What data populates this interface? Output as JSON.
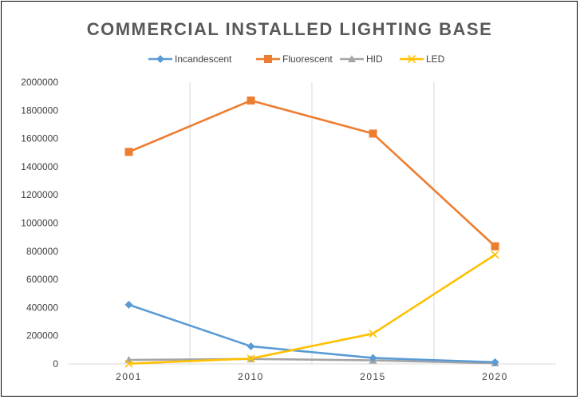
{
  "chart_data": {
    "type": "line",
    "title": "COMMERCIAL INSTALLED LIGHTING BASE",
    "xlabel": "",
    "ylabel": "",
    "categories": [
      "2001",
      "2010",
      "2015",
      "2020"
    ],
    "ylim": [
      0,
      2000000
    ],
    "yticks": [
      "0",
      "200000",
      "400000",
      "600000",
      "800000",
      "1000000",
      "1200000",
      "1400000",
      "1600000",
      "1800000",
      "2000000"
    ],
    "grid": "vertical",
    "legend_position": "top",
    "series": [
      {
        "name": "Incandescent",
        "color": "#5B9BD5",
        "marker": "diamond",
        "values": [
          420000,
          125000,
          42000,
          12000
        ]
      },
      {
        "name": "Fluorescent",
        "color": "#ED7D31",
        "marker": "square",
        "values": [
          1505000,
          1870000,
          1635000,
          835000
        ]
      },
      {
        "name": "HID",
        "color": "#A5A5A5",
        "marker": "triangle",
        "values": [
          28000,
          35000,
          25000,
          5000
        ]
      },
      {
        "name": "LED",
        "color": "#FFC000",
        "marker": "x",
        "values": [
          2000,
          38000,
          215000,
          775000
        ]
      }
    ]
  }
}
